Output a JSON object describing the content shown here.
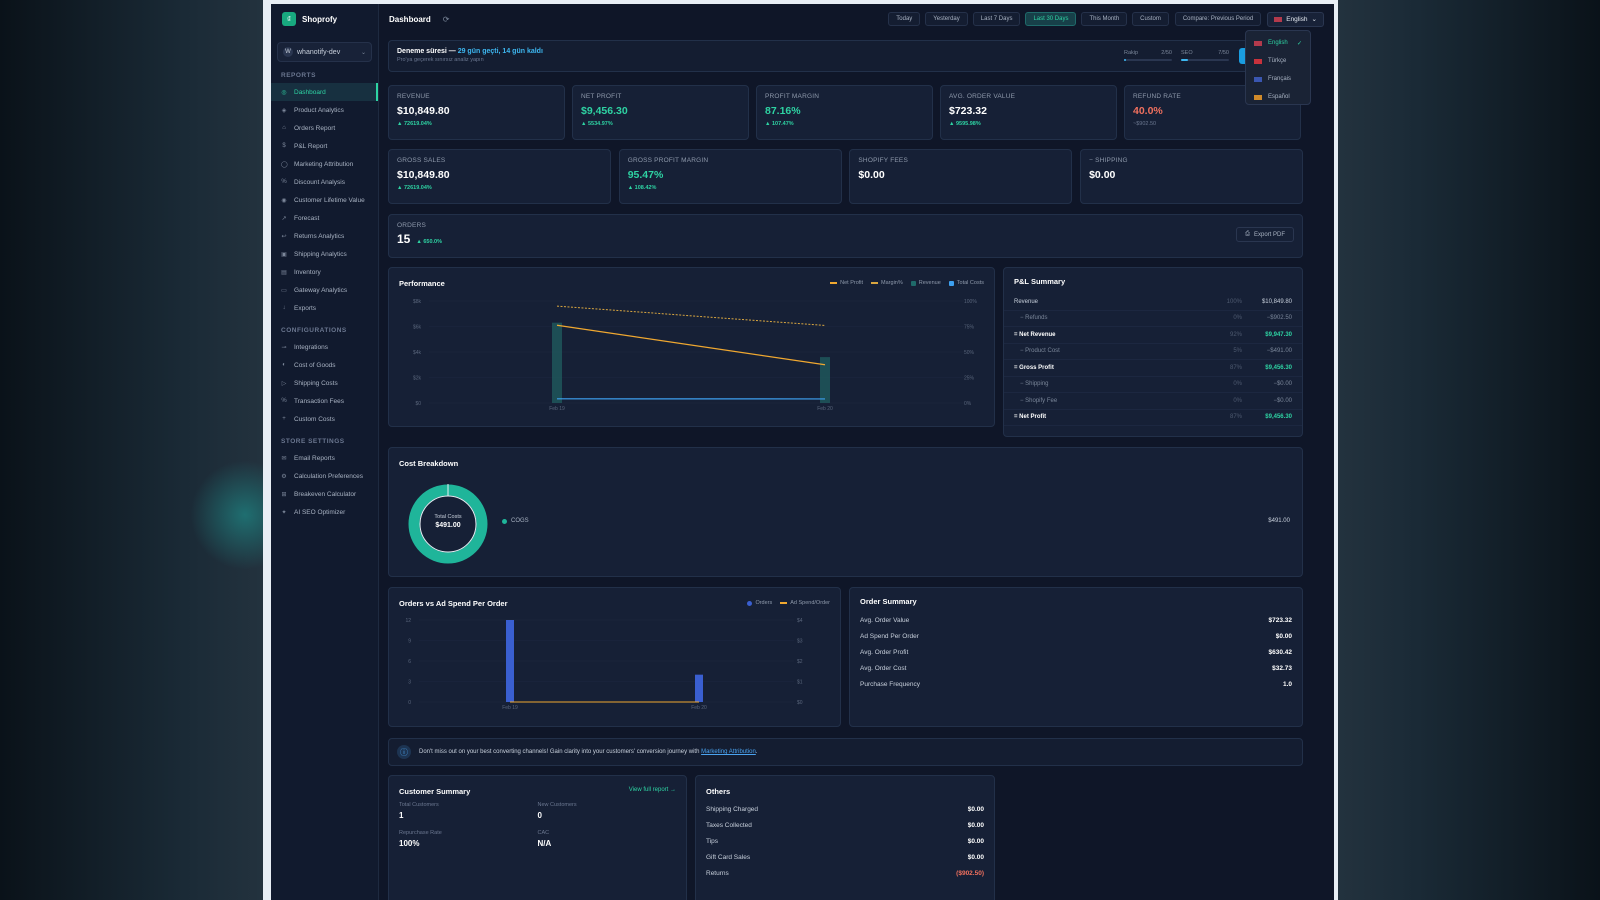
{
  "app": {
    "brand": "Shoprofy",
    "store": "whanotify-dev",
    "store_initial": "W"
  },
  "sidebar": {
    "reports_title": "REPORTS",
    "reports": [
      {
        "label": "Dashboard",
        "icon": "grid-icon"
      },
      {
        "label": "Product Analytics",
        "icon": "box-icon"
      },
      {
        "label": "Orders Report",
        "icon": "cart-icon"
      },
      {
        "label": "P&L Report",
        "icon": "dollar-icon"
      },
      {
        "label": "Marketing Attribution",
        "icon": "target-icon"
      },
      {
        "label": "Discount Analysis",
        "icon": "percent-icon"
      },
      {
        "label": "Customer Lifetime Value",
        "icon": "user-icon"
      },
      {
        "label": "Forecast",
        "icon": "trend-icon"
      },
      {
        "label": "Returns Analytics",
        "icon": "return-icon"
      },
      {
        "label": "Shipping Analytics",
        "icon": "package-icon"
      },
      {
        "label": "Inventory",
        "icon": "inventory-icon"
      },
      {
        "label": "Gateway Analytics",
        "icon": "card-icon"
      },
      {
        "label": "Exports",
        "icon": "download-icon"
      }
    ],
    "config_title": "CONFIGURATIONS",
    "config": [
      {
        "label": "Integrations",
        "icon": "plug-icon"
      },
      {
        "label": "Cost of Goods",
        "icon": "coins-icon"
      },
      {
        "label": "Shipping Costs",
        "icon": "truck-icon"
      },
      {
        "label": "Transaction Fees",
        "icon": "percent-icon"
      },
      {
        "label": "Custom Costs",
        "icon": "plus-icon"
      }
    ],
    "store_title": "STORE SETTINGS",
    "store": [
      {
        "label": "Email Reports",
        "icon": "mail-icon"
      },
      {
        "label": "Calculation Preferences",
        "icon": "gear-icon"
      },
      {
        "label": "Breakeven Calculator",
        "icon": "calculator-icon"
      },
      {
        "label": "AI SEO Optimizer",
        "icon": "sparkle-icon"
      }
    ]
  },
  "topbar": {
    "title": "Dashboard",
    "ranges": [
      "Today",
      "Yesterday",
      "Last 7 Days",
      "Last 30 Days",
      "This Month",
      "Custom"
    ],
    "active_range": "Last 30 Days",
    "compare": "Compare: Previous Period",
    "language": "English"
  },
  "languages": [
    "English",
    "Türkçe",
    "Français",
    "Español"
  ],
  "trial": {
    "title": "Deneme süresi —",
    "highlight": "29 gün geçti, 14 gün kaldı",
    "subtitle": "Pro'ya geçerek sınırsız analiz yapın",
    "meters": [
      {
        "label": "Rakip",
        "value": "2/50",
        "fill": 0.04
      },
      {
        "label": "SEO",
        "value": "7/50",
        "fill": 0.14
      }
    ]
  },
  "kpis_top": [
    {
      "label": "Revenue",
      "value": "$10,849.80",
      "delta": "▲ 72619.04%",
      "tone": "white"
    },
    {
      "label": "Net Profit",
      "value": "$9,456.30",
      "delta": "▲ 5534.97%",
      "tone": "green"
    },
    {
      "label": "Profit Margin",
      "value": "87.16%",
      "delta": "▲ 107.47%",
      "tone": "green"
    },
    {
      "label": "Avg. Order Value",
      "value": "$723.32",
      "delta": "▲ 9595.98%",
      "tone": "white"
    },
    {
      "label": "Refund Rate",
      "value": "40.0%",
      "delta": "~$902.50",
      "tone": "red"
    }
  ],
  "kpis_mid": [
    {
      "label": "Gross Sales",
      "value": "$10,849.80",
      "delta": "▲ 72619.04%",
      "tone": "white"
    },
    {
      "label": "Gross Profit Margin",
      "value": "95.47%",
      "delta": "▲ 108.42%",
      "tone": "green"
    },
    {
      "label": "Shopify Fees",
      "value": "$0.00",
      "delta": "",
      "tone": "white"
    },
    {
      "label": "− Shipping",
      "value": "$0.00",
      "delta": "",
      "tone": "white"
    }
  ],
  "orders": {
    "label": "ORDERS",
    "value": "15",
    "delta": "▲ 650.0%",
    "export": "Export PDF"
  },
  "performance": {
    "title": "Performance",
    "legend": [
      "Net Profit",
      "Margin%",
      "Revenue",
      "Total Costs"
    ],
    "chart_data": {
      "type": "line",
      "x": [
        "Feb 19",
        "Feb 20"
      ],
      "series": [
        {
          "name": "Net Profit",
          "values": [
            6100,
            3000
          ]
        },
        {
          "name": "Margin%",
          "values": [
            95,
            76
          ]
        },
        {
          "name": "Revenue",
          "values": [
            6300,
            3600
          ]
        },
        {
          "name": "Total Costs",
          "values": [
            250,
            240
          ]
        }
      ],
      "y_ticks": [
        "$8k",
        "$6k",
        "$4k",
        "$2k",
        "$0"
      ],
      "y2_ticks": [
        "100%",
        "75%",
        "50%",
        "25%",
        "0%"
      ],
      "ylim": [
        0,
        8000
      ]
    }
  },
  "pl": {
    "title": "P&L Summary",
    "rows": [
      {
        "label": "Revenue",
        "pct": "100%",
        "amount": "$10,849.80",
        "kind": "main"
      },
      {
        "label": "− Refunds",
        "pct": "0%",
        "amount": "−$902.50",
        "kind": "sub"
      },
      {
        "label": "= Net Revenue",
        "pct": "92%",
        "amount": "$9,947.30",
        "kind": "bold"
      },
      {
        "label": "− Product Cost",
        "pct": "5%",
        "amount": "−$491.00",
        "kind": "sub"
      },
      {
        "label": "= Gross Profit",
        "pct": "87%",
        "amount": "$9,456.30",
        "kind": "bold"
      },
      {
        "label": "− Shipping",
        "pct": "0%",
        "amount": "−$0.00",
        "kind": "sub"
      },
      {
        "label": "− Shopify Fee",
        "pct": "0%",
        "amount": "−$0.00",
        "kind": "sub"
      },
      {
        "label": "= Net Profit",
        "pct": "87%",
        "amount": "$9,456.30",
        "kind": "bold"
      }
    ]
  },
  "cost": {
    "title": "Cost Breakdown",
    "center_label": "Total Costs",
    "center_value": "$491.00",
    "legend": "COGS",
    "amount": "$491.00"
  },
  "ovs": {
    "title": "Orders vs Ad Spend Per Order",
    "legend": [
      "Orders",
      "Ad Spend/Order"
    ],
    "chart_data": {
      "type": "bar",
      "categories": [
        "Feb 19",
        "Feb 20"
      ],
      "series": [
        {
          "name": "Orders",
          "values": [
            12,
            4
          ]
        },
        {
          "name": "Ad Spend/Order",
          "values": [
            0,
            0
          ]
        }
      ],
      "y_ticks": [
        "12",
        "9",
        "6",
        "3",
        "0"
      ],
      "y2_ticks": [
        "$4",
        "$3",
        "$2",
        "$1",
        "$0"
      ],
      "ylim": [
        0,
        12
      ]
    }
  },
  "order_summary": {
    "title": "Order Summary",
    "rows": [
      {
        "label": "Avg. Order Value",
        "value": "$723.32"
      },
      {
        "label": "Ad Spend Per Order",
        "value": "$0.00"
      },
      {
        "label": "Avg. Order Profit",
        "value": "$630.42"
      },
      {
        "label": "Avg. Order Cost",
        "value": "$32.73"
      },
      {
        "label": "Purchase Frequency",
        "value": "1.0"
      }
    ]
  },
  "info": {
    "text": "Don't miss out on your best converting channels! Gain clarity into your customers' conversion journey with",
    "link": "Marketing Attribution",
    "tail": "."
  },
  "customer": {
    "title": "Customer Summary",
    "link": "View full report →",
    "stats": [
      {
        "label": "Total Customers",
        "value": "1"
      },
      {
        "label": "New Customers",
        "value": "0"
      },
      {
        "label": "Repurchase Rate",
        "value": "100%"
      },
      {
        "label": "CAC",
        "value": "N/A"
      }
    ]
  },
  "others": {
    "title": "Others",
    "rows": [
      {
        "label": "Shipping Charged",
        "value": "$0.00"
      },
      {
        "label": "Taxes Collected",
        "value": "$0.00"
      },
      {
        "label": "Tips",
        "value": "$0.00"
      },
      {
        "label": "Gift Card Sales",
        "value": "$0.00"
      },
      {
        "label": "Returns",
        "value": "($902.50)"
      }
    ]
  },
  "colors": {
    "accent": "#2ed3a3",
    "netprofit": "#f0a830",
    "revenue": "#1f6a6a",
    "costs": "#3da0f0",
    "orders": "#3a5fd0",
    "danger": "#f0705e"
  }
}
